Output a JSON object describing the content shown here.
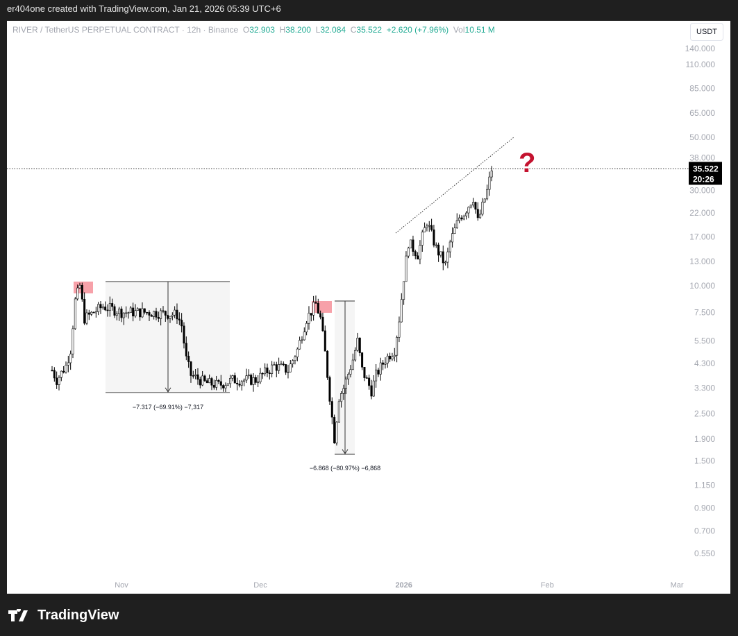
{
  "header": {
    "caption": "er404one created with TradingView.com, Jan 21, 2026 05:39 UTC+6"
  },
  "legend": {
    "symbol": "RIVER / TetherUS PERPETUAL CONTRACT · 12h · Binance",
    "o_label": "O",
    "o": "32.903",
    "h_label": "H",
    "h": "38.200",
    "l_label": "L",
    "l": "32.084",
    "c_label": "C",
    "c": "35.522",
    "change": "+2.620 (+7.96%)",
    "vol_label": "Vol",
    "vol": "10.51 M"
  },
  "currency_button": "USDT",
  "price_label": {
    "price": "35.522",
    "countdown": "20:26"
  },
  "annotations": {
    "measure1": "−7.317 (−69.91%) −7,317",
    "measure2": "−6.868 (−80.97%) −6,868",
    "question": "?"
  },
  "footer": {
    "brand": "TradingView"
  },
  "colors": {
    "up": "#ffffff",
    "down": "#000000",
    "highlight": "#f7a1a9",
    "question": "#c4122f",
    "value": "#22ab94"
  },
  "chart_data": {
    "type": "candlestick",
    "interval": "12h",
    "yscale": "log",
    "ylim": [
      0.5,
      150
    ],
    "y_ticks": [
      "140.000",
      "110.000",
      "85.000",
      "65.000",
      "50.000",
      "38.000",
      "30.000",
      "22.000",
      "17.000",
      "13.000",
      "10.000",
      "7.500",
      "5.500",
      "4.300",
      "3.300",
      "2.500",
      "1.900",
      "1.500",
      "1.150",
      "0.900",
      "0.700",
      "0.550"
    ],
    "x_ticks": [
      {
        "label": "Nov",
        "date": "2025-11-01"
      },
      {
        "label": "Dec",
        "date": "2025-12-01"
      },
      {
        "label": "2026",
        "date": "2026-01-01"
      },
      {
        "label": "Feb",
        "date": "2026-02-01"
      },
      {
        "label": "Mar",
        "date": "2026-03-01"
      }
    ],
    "approx_closes": [
      [
        "2025-10-17",
        4.0
      ],
      [
        "2025-10-18",
        3.6
      ],
      [
        "2025-10-20",
        4.2
      ],
      [
        "2025-10-21",
        5.0
      ],
      [
        "2025-10-22",
        8.5
      ],
      [
        "2025-10-23",
        10.0
      ],
      [
        "2025-10-24",
        7.0
      ],
      [
        "2025-10-26",
        7.5
      ],
      [
        "2025-10-28",
        8.0
      ],
      [
        "2025-11-01",
        7.5
      ],
      [
        "2025-11-07",
        7.5
      ],
      [
        "2025-11-13",
        7.3
      ],
      [
        "2025-11-14",
        6.5
      ],
      [
        "2025-11-15",
        4.5
      ],
      [
        "2025-11-16",
        3.8
      ],
      [
        "2025-11-19",
        3.5
      ],
      [
        "2025-11-22",
        3.4
      ],
      [
        "2025-11-25",
        3.6
      ],
      [
        "2025-11-30",
        3.6
      ],
      [
        "2025-12-04",
        4.2
      ],
      [
        "2025-12-07",
        4.0
      ],
      [
        "2025-12-09",
        5.0
      ],
      [
        "2025-12-11",
        7.0
      ],
      [
        "2025-12-13",
        8.2
      ],
      [
        "2025-12-14",
        7.0
      ],
      [
        "2025-12-15",
        4.8
      ],
      [
        "2025-12-16",
        3.0
      ],
      [
        "2025-12-17",
        1.9
      ],
      [
        "2025-12-18",
        3.0
      ],
      [
        "2025-12-19",
        3.3
      ],
      [
        "2025-12-21",
        4.5
      ],
      [
        "2025-12-22",
        5.5
      ],
      [
        "2025-12-23",
        4.0
      ],
      [
        "2025-12-25",
        3.2
      ],
      [
        "2025-12-26",
        3.8
      ],
      [
        "2025-12-28",
        4.5
      ],
      [
        "2025-12-30",
        5.0
      ],
      [
        "2025-12-31",
        7.0
      ],
      [
        "2026-01-01",
        11
      ],
      [
        "2026-01-02",
        16
      ],
      [
        "2026-01-04",
        14
      ],
      [
        "2026-01-05",
        17
      ],
      [
        "2026-01-06",
        20
      ],
      [
        "2026-01-08",
        15
      ],
      [
        "2026-01-10",
        12.5
      ],
      [
        "2026-01-11",
        16
      ],
      [
        "2026-01-13",
        21
      ],
      [
        "2026-01-14",
        22
      ],
      [
        "2026-01-16",
        26
      ],
      [
        "2026-01-17",
        20
      ],
      [
        "2026-01-19",
        28
      ],
      [
        "2026-01-20",
        35.5
      ]
    ],
    "last_price": 35.522
  }
}
